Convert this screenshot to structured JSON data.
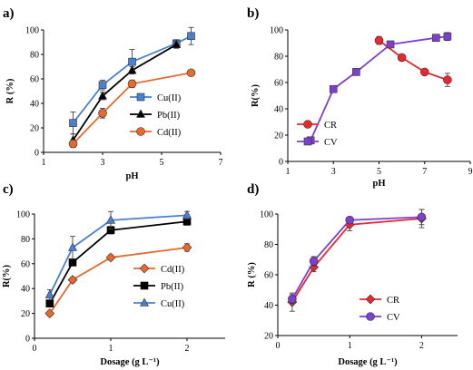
{
  "colors": {
    "blue": "#4a7fd4",
    "black": "#000000",
    "orange": "#e8692c",
    "red": "#e8282e",
    "purple": "#7b3fd1"
  },
  "chart_data": [
    {
      "id": "a",
      "panel_label": "a)",
      "type": "line",
      "xlabel": "pH",
      "ylabel": "R (%)",
      "xlim": [
        1,
        7
      ],
      "ylim": [
        0,
        100
      ],
      "xticks": [
        1,
        3,
        5,
        7
      ],
      "yticks": [
        0,
        20,
        40,
        60,
        80,
        100
      ],
      "legend_position": "bottom-right",
      "series": [
        {
          "name": "Cu(II)",
          "color": "blue",
          "marker": "square",
          "x": [
            2,
            3,
            4,
            5.5,
            6
          ],
          "y": [
            24,
            55,
            74,
            89,
            95
          ],
          "err": [
            9,
            4,
            10,
            3,
            7
          ]
        },
        {
          "name": "Pb(II)",
          "color": "black",
          "marker": "triangle",
          "x": [
            2,
            3,
            4,
            5.5
          ],
          "y": [
            10,
            46,
            67,
            88
          ],
          "err": [
            5,
            3,
            3,
            3
          ]
        },
        {
          "name": "Cd(II)",
          "color": "orange",
          "marker": "circle",
          "x": [
            2,
            3,
            4,
            6
          ],
          "y": [
            7,
            32,
            56,
            65
          ],
          "err": [
            3,
            4,
            3,
            2
          ]
        }
      ]
    },
    {
      "id": "b",
      "panel_label": "b)",
      "type": "line",
      "xlabel": "pH",
      "ylabel": "R(%)",
      "xlim": [
        1,
        9
      ],
      "ylim": [
        0,
        100
      ],
      "xticks": [
        1,
        3,
        5,
        7,
        9
      ],
      "yticks": [
        0,
        20,
        40,
        60,
        80,
        100
      ],
      "legend_position": "bottom-left",
      "series": [
        {
          "name": "CR",
          "color": "red",
          "marker": "circle",
          "x": [
            5,
            6,
            7,
            8
          ],
          "y": [
            92,
            79,
            68,
            62
          ],
          "err": [
            3,
            2,
            2,
            5
          ]
        },
        {
          "name": "CV",
          "color": "purple",
          "marker": "square",
          "x": [
            2,
            3,
            4,
            5.5,
            7.5,
            8
          ],
          "y": [
            16,
            55,
            68,
            89,
            94,
            95
          ],
          "err": [
            0,
            2,
            0,
            0,
            2,
            3
          ]
        }
      ]
    },
    {
      "id": "c",
      "panel_label": "c)",
      "type": "line",
      "xlabel": "Dosage (g L⁻¹)",
      "ylabel": "R(%)",
      "xlim": [
        0,
        2.5
      ],
      "ylim": [
        0,
        100
      ],
      "xticks": [
        0,
        1,
        2
      ],
      "yticks": [
        0,
        20,
        40,
        60,
        80,
        100
      ],
      "legend_position": "bottom-right",
      "series": [
        {
          "name": "Cd(II)",
          "color": "orange",
          "marker": "diamond",
          "x": [
            0.2,
            0.5,
            1,
            2
          ],
          "y": [
            20,
            47,
            65,
            73
          ],
          "err": [
            2,
            2,
            2,
            3
          ]
        },
        {
          "name": "Pb(II)",
          "color": "black",
          "marker": "square",
          "x": [
            0.2,
            0.5,
            1,
            2
          ],
          "y": [
            28,
            61,
            87,
            94
          ],
          "err": [
            2,
            2,
            3,
            3
          ]
        },
        {
          "name": "Cu(II)",
          "color": "blue",
          "marker": "triangle",
          "x": [
            0.2,
            0.5,
            1,
            2
          ],
          "y": [
            35,
            73,
            95,
            99
          ],
          "err": [
            4,
            9,
            7,
            3
          ]
        }
      ]
    },
    {
      "id": "d",
      "panel_label": "d)",
      "type": "line",
      "xlabel": "Dosage (g L⁻¹)",
      "ylabel": "R (%)",
      "xlim": [
        0,
        2.5
      ],
      "ylim": [
        20,
        100
      ],
      "xticks": [
        0,
        1,
        2
      ],
      "yticks": [
        20,
        40,
        60,
        80,
        100
      ],
      "legend_position": "bottom-right",
      "series": [
        {
          "name": "CR",
          "color": "red",
          "marker": "diamond",
          "x": [
            0.2,
            0.5,
            1,
            2
          ],
          "y": [
            42,
            65,
            93,
            97
          ],
          "err": [
            6,
            3,
            4,
            6
          ]
        },
        {
          "name": "CV",
          "color": "purple",
          "marker": "circle",
          "x": [
            0.2,
            0.5,
            1,
            2
          ],
          "y": [
            44,
            69,
            96,
            98
          ],
          "err": [
            3,
            3,
            2,
            5
          ]
        }
      ]
    }
  ]
}
